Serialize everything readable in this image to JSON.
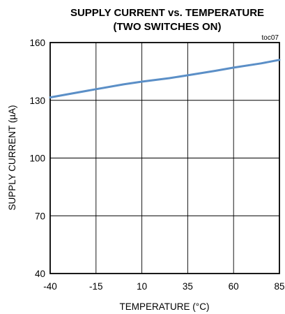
{
  "chart_data": {
    "type": "line",
    "title_line1": "SUPPLY CURRENT vs. TEMPERATURE",
    "title_line2": "(TWO SWITCHES ON)",
    "tag": "toc07",
    "xlabel": "TEMPERATURE (°C)",
    "ylabel": "SUPPLY CURRENT (µA)",
    "xlim": [
      -40,
      85
    ],
    "ylim": [
      40,
      160
    ],
    "xticks": [
      "-40",
      "-15",
      "10",
      "35",
      "60",
      "85"
    ],
    "yticks": [
      "160",
      "130",
      "100",
      "70",
      "40"
    ],
    "grid": true,
    "line_color": "#5b8fc7",
    "series": [
      {
        "x": [
          -40,
          -30,
          -15,
          0,
          10,
          25,
          35,
          50,
          60,
          75,
          85
        ],
        "values": [
          131.5,
          133.2,
          135.8,
          138.3,
          139.7,
          141.5,
          143.0,
          145.3,
          147.0,
          149.2,
          151.0
        ]
      }
    ]
  }
}
